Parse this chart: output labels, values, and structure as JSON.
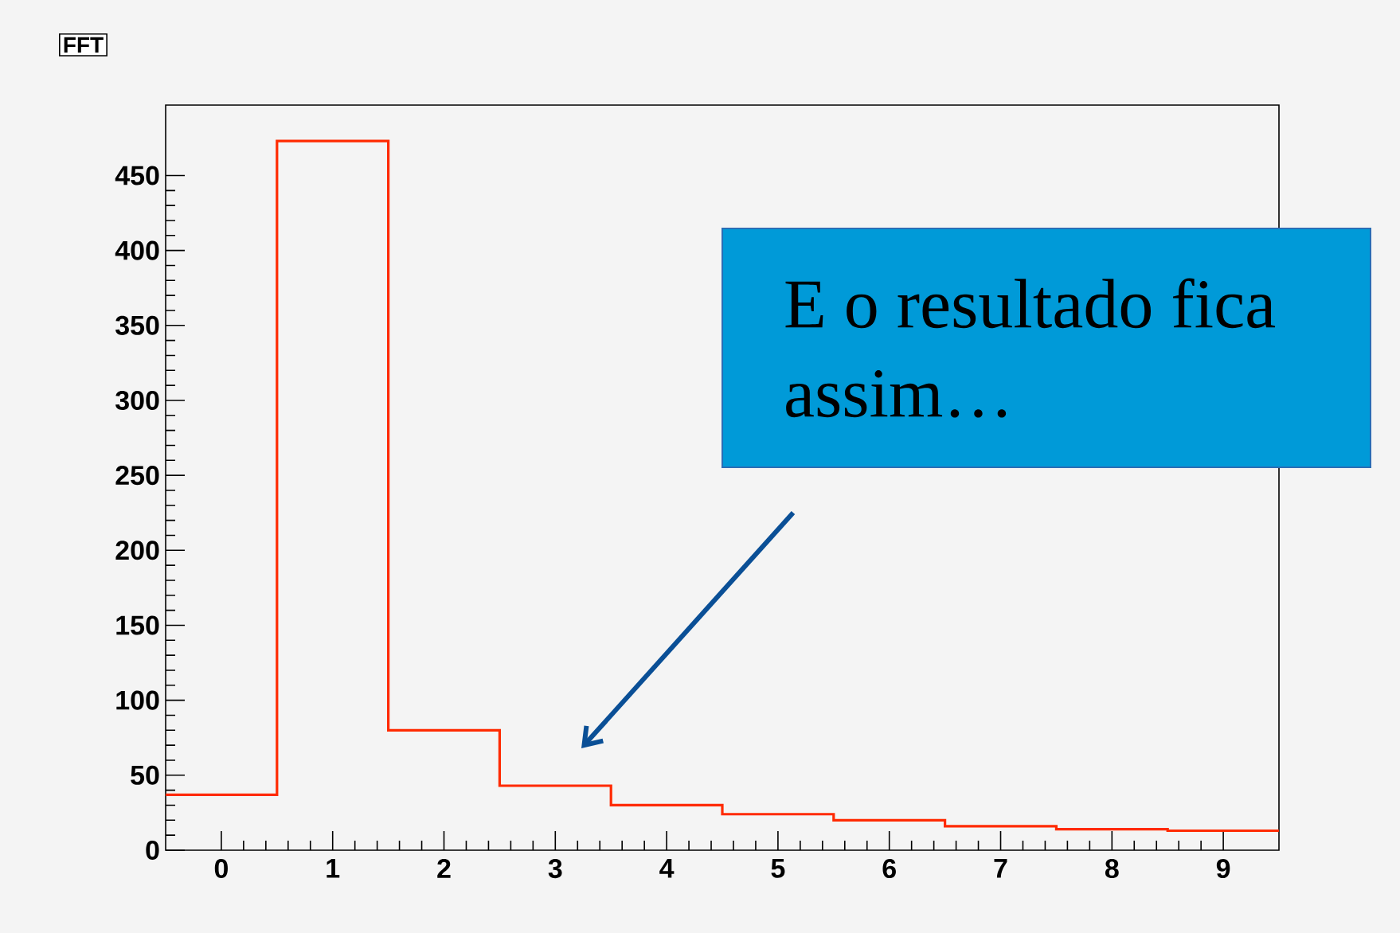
{
  "chart_data": {
    "type": "histogram",
    "title": "FFT",
    "bins": [
      -0.5,
      0.5,
      1.5,
      2.5,
      3.5,
      4.5,
      5.5,
      6.5,
      7.5,
      8.5,
      9.5
    ],
    "values": [
      37,
      473,
      80,
      43,
      30,
      24,
      20,
      16,
      14,
      13
    ],
    "color": "#ff2a00",
    "xlim": [
      -0.5,
      9.5
    ],
    "ylim": [
      0,
      497
    ],
    "xticks": [
      0,
      1,
      2,
      3,
      4,
      5,
      6,
      7,
      8,
      9
    ],
    "yticks": [
      0,
      50,
      100,
      150,
      200,
      250,
      300,
      350,
      400,
      450
    ],
    "grid": false,
    "annotations": [
      "E o resultado fica assim…"
    ]
  }
}
